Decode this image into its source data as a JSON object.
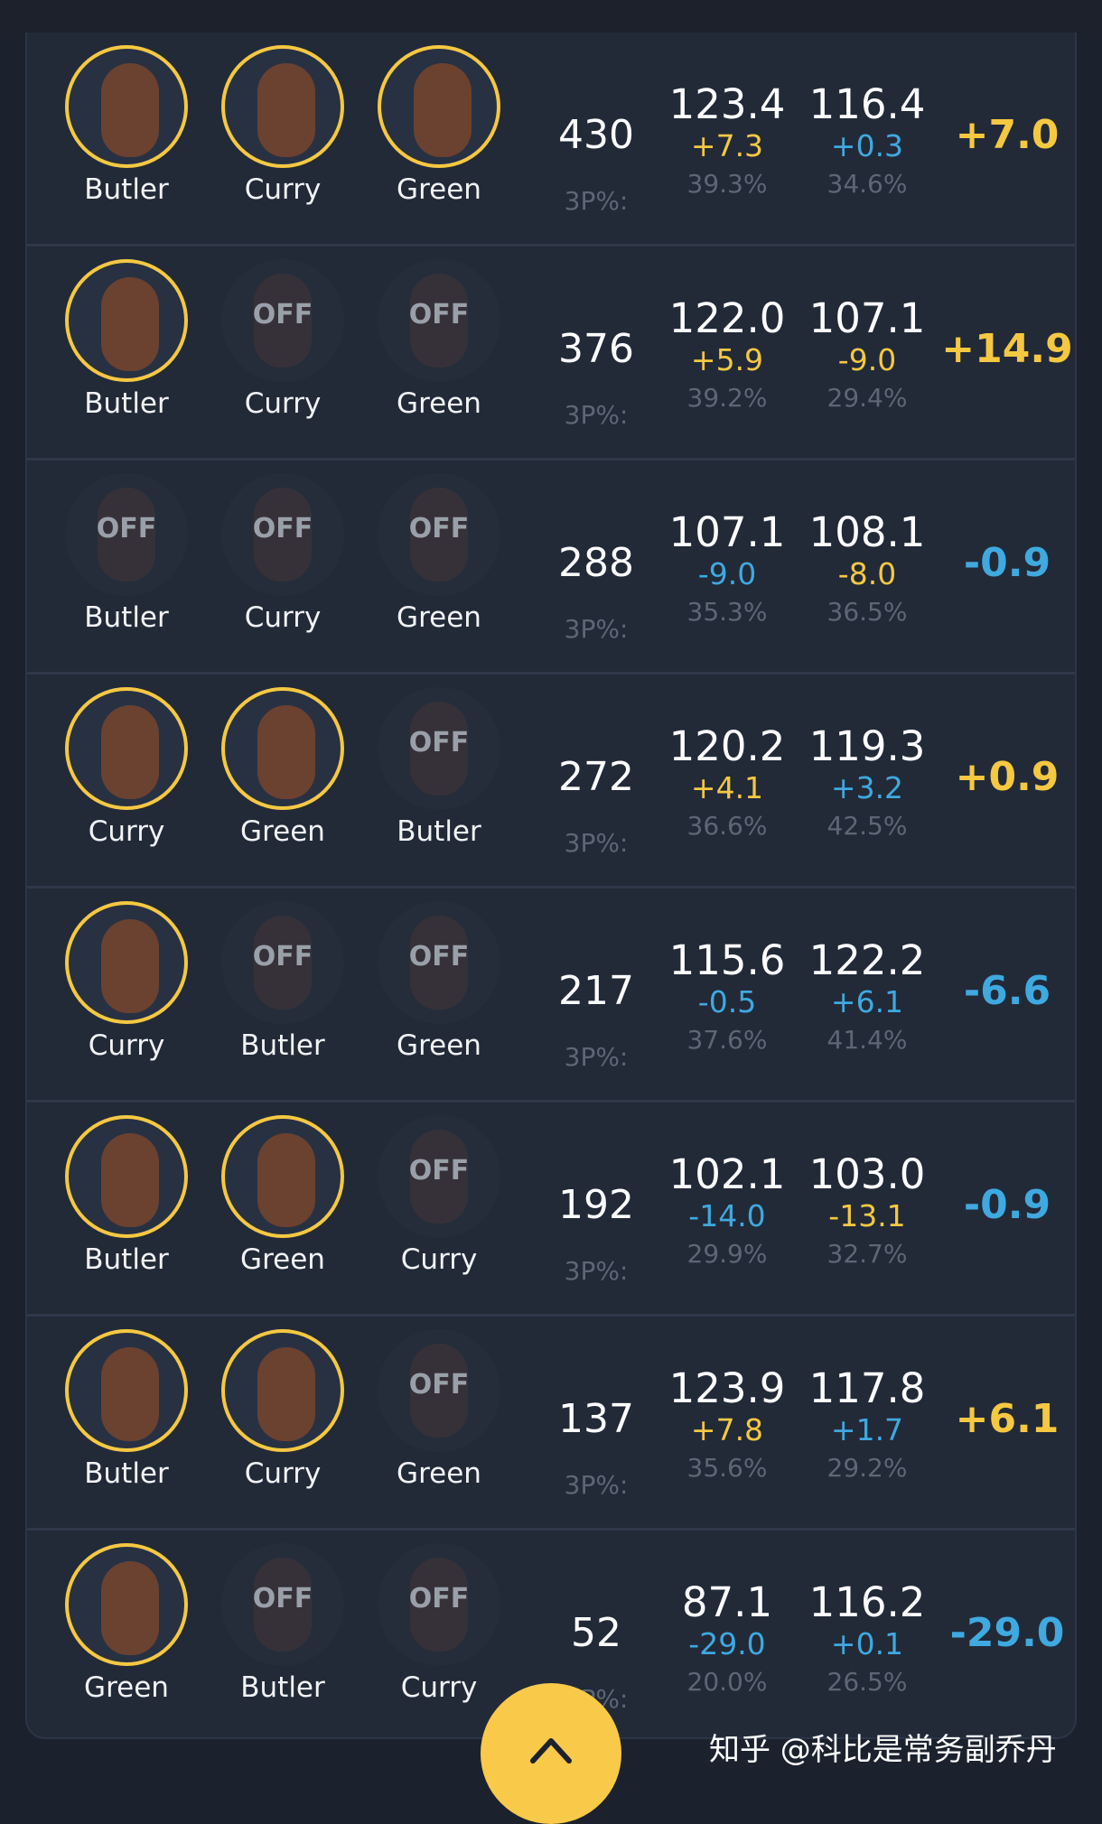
{
  "colors": {
    "positive": "#f5c842",
    "negative": "#3fa9e0",
    "background": "#1c222d",
    "panel": "#222a38"
  },
  "off_label": "OFF",
  "pct_label": "3P%:",
  "rows": [
    {
      "players": [
        {
          "name": "Butler",
          "on": true
        },
        {
          "name": "Curry",
          "on": true
        },
        {
          "name": "Green",
          "on": true
        }
      ],
      "count": "430",
      "ortg": "123.4",
      "ortg_delta": "+7.3",
      "ortg_pct": "39.3%",
      "drtg": "116.4",
      "drtg_delta": "+0.3",
      "drtg_pct": "34.6%",
      "net": "+7.0"
    },
    {
      "players": [
        {
          "name": "Butler",
          "on": true
        },
        {
          "name": "Curry",
          "on": false
        },
        {
          "name": "Green",
          "on": false
        }
      ],
      "count": "376",
      "ortg": "122.0",
      "ortg_delta": "+5.9",
      "ortg_pct": "39.2%",
      "drtg": "107.1",
      "drtg_delta": "-9.0",
      "drtg_pct": "29.4%",
      "net": "+14.9"
    },
    {
      "players": [
        {
          "name": "Butler",
          "on": false
        },
        {
          "name": "Curry",
          "on": false
        },
        {
          "name": "Green",
          "on": false
        }
      ],
      "count": "288",
      "ortg": "107.1",
      "ortg_delta": "-9.0",
      "ortg_pct": "35.3%",
      "drtg": "108.1",
      "drtg_delta": "-8.0",
      "drtg_pct": "36.5%",
      "net": "-0.9"
    },
    {
      "players": [
        {
          "name": "Curry",
          "on": true
        },
        {
          "name": "Green",
          "on": true
        },
        {
          "name": "Butler",
          "on": false
        }
      ],
      "count": "272",
      "ortg": "120.2",
      "ortg_delta": "+4.1",
      "ortg_pct": "36.6%",
      "drtg": "119.3",
      "drtg_delta": "+3.2",
      "drtg_pct": "42.5%",
      "net": "+0.9"
    },
    {
      "players": [
        {
          "name": "Curry",
          "on": true
        },
        {
          "name": "Butler",
          "on": false
        },
        {
          "name": "Green",
          "on": false
        }
      ],
      "count": "217",
      "ortg": "115.6",
      "ortg_delta": "-0.5",
      "ortg_pct": "37.6%",
      "drtg": "122.2",
      "drtg_delta": "+6.1",
      "drtg_pct": "41.4%",
      "net": "-6.6"
    },
    {
      "players": [
        {
          "name": "Butler",
          "on": true
        },
        {
          "name": "Green",
          "on": true
        },
        {
          "name": "Curry",
          "on": false
        }
      ],
      "count": "192",
      "ortg": "102.1",
      "ortg_delta": "-14.0",
      "ortg_pct": "29.9%",
      "drtg": "103.0",
      "drtg_delta": "-13.1",
      "drtg_pct": "32.7%",
      "net": "-0.9"
    },
    {
      "players": [
        {
          "name": "Butler",
          "on": true
        },
        {
          "name": "Curry",
          "on": true
        },
        {
          "name": "Green",
          "on": false
        }
      ],
      "count": "137",
      "ortg": "123.9",
      "ortg_delta": "+7.8",
      "ortg_pct": "35.6%",
      "drtg": "117.8",
      "drtg_delta": "+1.7",
      "drtg_pct": "29.2%",
      "net": "+6.1"
    },
    {
      "players": [
        {
          "name": "Green",
          "on": true
        },
        {
          "name": "Butler",
          "on": false
        },
        {
          "name": "Curry",
          "on": false
        }
      ],
      "count": "52",
      "ortg": "87.1",
      "ortg_delta": "-29.0",
      "ortg_pct": "20.0%",
      "drtg": "116.2",
      "drtg_delta": "+0.1",
      "drtg_pct": "26.5%",
      "net": "-29.0"
    }
  ],
  "scroll_top_icon": "chevron-up-icon",
  "watermark": "知乎 @科比是常务副乔丹"
}
